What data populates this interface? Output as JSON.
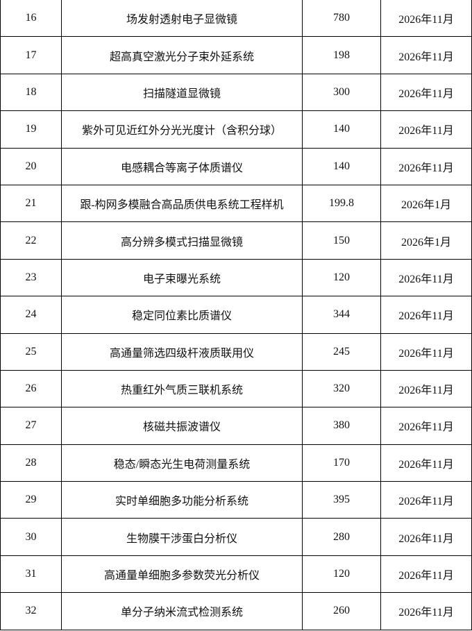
{
  "table": {
    "rows": [
      [
        "16",
        "场发射透射电子显微镜",
        "780",
        "2026年11月"
      ],
      [
        "17",
        "超高真空激光分子束外延系统",
        "198",
        "2026年11月"
      ],
      [
        "18",
        "扫描隧道显微镜",
        "300",
        "2026年11月"
      ],
      [
        "19",
        "紫外可见近红外分光光度计（含积分球）",
        "140",
        "2026年11月"
      ],
      [
        "20",
        "电感耦合等离子体质谱仪",
        "140",
        "2026年11月"
      ],
      [
        "21",
        "跟-构网多模融合高品质供电系统工程样机",
        "199.8",
        "2026年1月"
      ],
      [
        "22",
        "高分辨多模式扫描显微镜",
        "150",
        "2026年1月"
      ],
      [
        "23",
        "电子束曝光系统",
        "120",
        "2026年11月"
      ],
      [
        "24",
        "稳定同位素比质谱仪",
        "344",
        "2026年11月"
      ],
      [
        "25",
        "高通量筛选四级杆液质联用仪",
        "245",
        "2026年11月"
      ],
      [
        "26",
        "热重红外气质三联机系统",
        "320",
        "2026年11月"
      ],
      [
        "27",
        "核磁共振波谱仪",
        "380",
        "2026年11月"
      ],
      [
        "28",
        "稳态/瞬态光生电荷测量系统",
        "170",
        "2026年11月"
      ],
      [
        "29",
        "实时单细胞多功能分析系统",
        "395",
        "2026年11月"
      ],
      [
        "30",
        "生物膜干涉蛋白分析仪",
        "280",
        "2026年11月"
      ],
      [
        "31",
        "高通量单细胞多参数荧光分析仪",
        "120",
        "2026年11月"
      ],
      [
        "32",
        "单分子纳米流式检测系统",
        "260",
        "2026年11月"
      ]
    ]
  }
}
